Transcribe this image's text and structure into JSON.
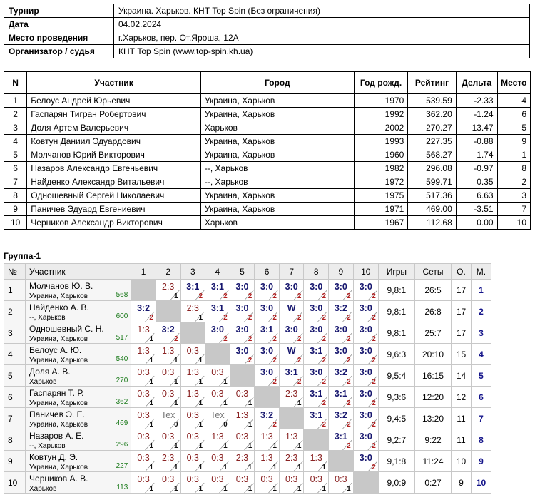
{
  "info": [
    {
      "label": "Турнир",
      "value": "Украина. Харьков. КНТ Top Spin (Без ограничения)"
    },
    {
      "label": "Дата",
      "value": "04.02.2024"
    },
    {
      "label": "Место проведения",
      "value": "г.Харьков, пер. От.Яроша, 12А"
    },
    {
      "label": "Организатор / судья",
      "value": "КНТ Top Spin (www.top-spin.kh.ua)"
    }
  ],
  "players_table": {
    "headers": [
      "N",
      "Участник",
      "Город",
      "Год рожд.",
      "Рейтинг",
      "Дельта",
      "Место"
    ],
    "rows": [
      [
        "1",
        "Белоус Андрей Юрьевич",
        "Украина, Харьков",
        "1970",
        "539.59",
        "-2.33",
        "4"
      ],
      [
        "2",
        "Гаспарян Тигран Робертович",
        "Украина, Харьков",
        "1992",
        "362.20",
        "-1.24",
        "6"
      ],
      [
        "3",
        "Доля Артем Валерьевич",
        "Харьков",
        "2002",
        "270.27",
        "13.47",
        "5"
      ],
      [
        "4",
        "Ковтун Даниил Эдуардович",
        "Украина, Харьков",
        "1993",
        "227.35",
        "-0.88",
        "9"
      ],
      [
        "5",
        "Молчанов Юрий Викторович",
        "Украина, Харьков",
        "1960",
        "568.27",
        "1.74",
        "1"
      ],
      [
        "6",
        "Назаров Александр Евгеньевич",
        "--, Харьков",
        "1982",
        "296.08",
        "-0.97",
        "8"
      ],
      [
        "7",
        "Найденко Александр Витальевич",
        "--, Харьков",
        "1972",
        "599.71",
        "0.35",
        "2"
      ],
      [
        "8",
        "Одношевный Сергей Николаевич",
        "Украина, Харьков",
        "1975",
        "517.36",
        "6.63",
        "3"
      ],
      [
        "9",
        "Паничев Эдуард Евгениевич",
        "Украина, Харьков",
        "1971",
        "469.00",
        "-3.51",
        "7"
      ],
      [
        "10",
        "Черников Александр Викторович",
        "Харьков",
        "1967",
        "112.68",
        "0.00",
        "10"
      ]
    ]
  },
  "group": {
    "title": "Группа-1",
    "headers": {
      "num": "№",
      "player": "Участник",
      "cols": [
        "1",
        "2",
        "3",
        "4",
        "5",
        "6",
        "7",
        "8",
        "9",
        "10"
      ],
      "games": "Игры",
      "sets": "Сеты",
      "o": "О.",
      "m": "М."
    },
    "rows": [
      {
        "n": "1",
        "name": "Молчанов Ю. В.",
        "city": "Украина, Харьков",
        "rating": "568",
        "cells": [
          null,
          "2:3|1",
          "3:1|2",
          "3:1|2",
          "3:0|2",
          "3:0|2",
          "3:0|2",
          "3:0|2",
          "3:0|2",
          "3:0|2"
        ],
        "games": "9,8:1",
        "sets": "26:5",
        "o": "17",
        "m": "1"
      },
      {
        "n": "2",
        "name": "Найденко А. В.",
        "city": "--, Харьков",
        "rating": "600",
        "cells": [
          "3:2|2",
          null,
          "2:3|1",
          "3:1|2",
          "3:0|2",
          "3:0|2",
          "W|2",
          "3:0|2",
          "3:2|2",
          "3:0|2"
        ],
        "games": "9,8:1",
        "sets": "26:8",
        "o": "17",
        "m": "2"
      },
      {
        "n": "3",
        "name": "Одношевный С. Н.",
        "city": "Украина, Харьков",
        "rating": "517",
        "cells": [
          "1:3|1",
          "3:2|2",
          null,
          "3:0|2",
          "3:0|2",
          "3:1|2",
          "3:0|2",
          "3:0|2",
          "3:0|2",
          "3:0|2"
        ],
        "games": "9,8:1",
        "sets": "25:7",
        "o": "17",
        "m": "3"
      },
      {
        "n": "4",
        "name": "Белоус А. Ю.",
        "city": "Украина, Харьков",
        "rating": "540",
        "cells": [
          "1:3|1",
          "1:3|1",
          "0:3|1",
          null,
          "3:0|2",
          "3:0|2",
          "W|2",
          "3:1|2",
          "3:0|2",
          "3:0|2"
        ],
        "games": "9,6:3",
        "sets": "20:10",
        "o": "15",
        "m": "4"
      },
      {
        "n": "5",
        "name": "Доля А. В.",
        "city": "Харьков",
        "rating": "270",
        "cells": [
          "0:3|1",
          "0:3|1",
          "1:3|1",
          "0:3|1",
          null,
          "3:0|2",
          "3:1|2",
          "3:0|2",
          "3:2|2",
          "3:0|2"
        ],
        "games": "9,5:4",
        "sets": "16:15",
        "o": "14",
        "m": "5"
      },
      {
        "n": "6",
        "name": "Гаспарян Т. Р.",
        "city": "Украина, Харьков",
        "rating": "362",
        "cells": [
          "0:3|1",
          "0:3|1",
          "1:3|1",
          "0:3|1",
          "0:3|1",
          null,
          "2:3|1",
          "3:1|2",
          "3:1|2",
          "3:0|2"
        ],
        "games": "9,3:6",
        "sets": "12:20",
        "o": "12",
        "m": "6"
      },
      {
        "n": "7",
        "name": "Паничев Э. Е.",
        "city": "Украина, Харьков",
        "rating": "469",
        "cells": [
          "0:3|1",
          "Tex|0",
          "0:3|1",
          "Tex|0",
          "1:3|1",
          "3:2|2",
          null,
          "3:1|2",
          "3:2|2",
          "3:0|2"
        ],
        "games": "9,4:5",
        "sets": "13:20",
        "o": "11",
        "m": "7"
      },
      {
        "n": "8",
        "name": "Назаров А. Е.",
        "city": "--, Харьков",
        "rating": "296",
        "cells": [
          "0:3|1",
          "0:3|1",
          "0:3|1",
          "1:3|1",
          "0:3|1",
          "1:3|1",
          "1:3|1",
          null,
          "3:1|2",
          "3:0|2"
        ],
        "games": "9,2:7",
        "sets": "9:22",
        "o": "11",
        "m": "8"
      },
      {
        "n": "9",
        "name": "Ковтун Д. Э.",
        "city": "Украина, Харьков",
        "rating": "227",
        "cells": [
          "0:3|1",
          "2:3|1",
          "0:3|1",
          "0:3|1",
          "2:3|1",
          "1:3|1",
          "2:3|1",
          "1:3|1",
          null,
          "3:0|2"
        ],
        "games": "9,1:8",
        "sets": "11:24",
        "o": "10",
        "m": "9"
      },
      {
        "n": "10",
        "name": "Черников А. В.",
        "city": "Харьков",
        "rating": "113",
        "cells": [
          "0:3|1",
          "0:3|1",
          "0:3|1",
          "0:3|1",
          "0:3|1",
          "0:3|1",
          "0:3|1",
          "0:3|1",
          "0:3|1",
          null
        ],
        "games": "9,0:9",
        "sets": "0:27",
        "o": "9",
        "m": "10"
      }
    ]
  }
}
